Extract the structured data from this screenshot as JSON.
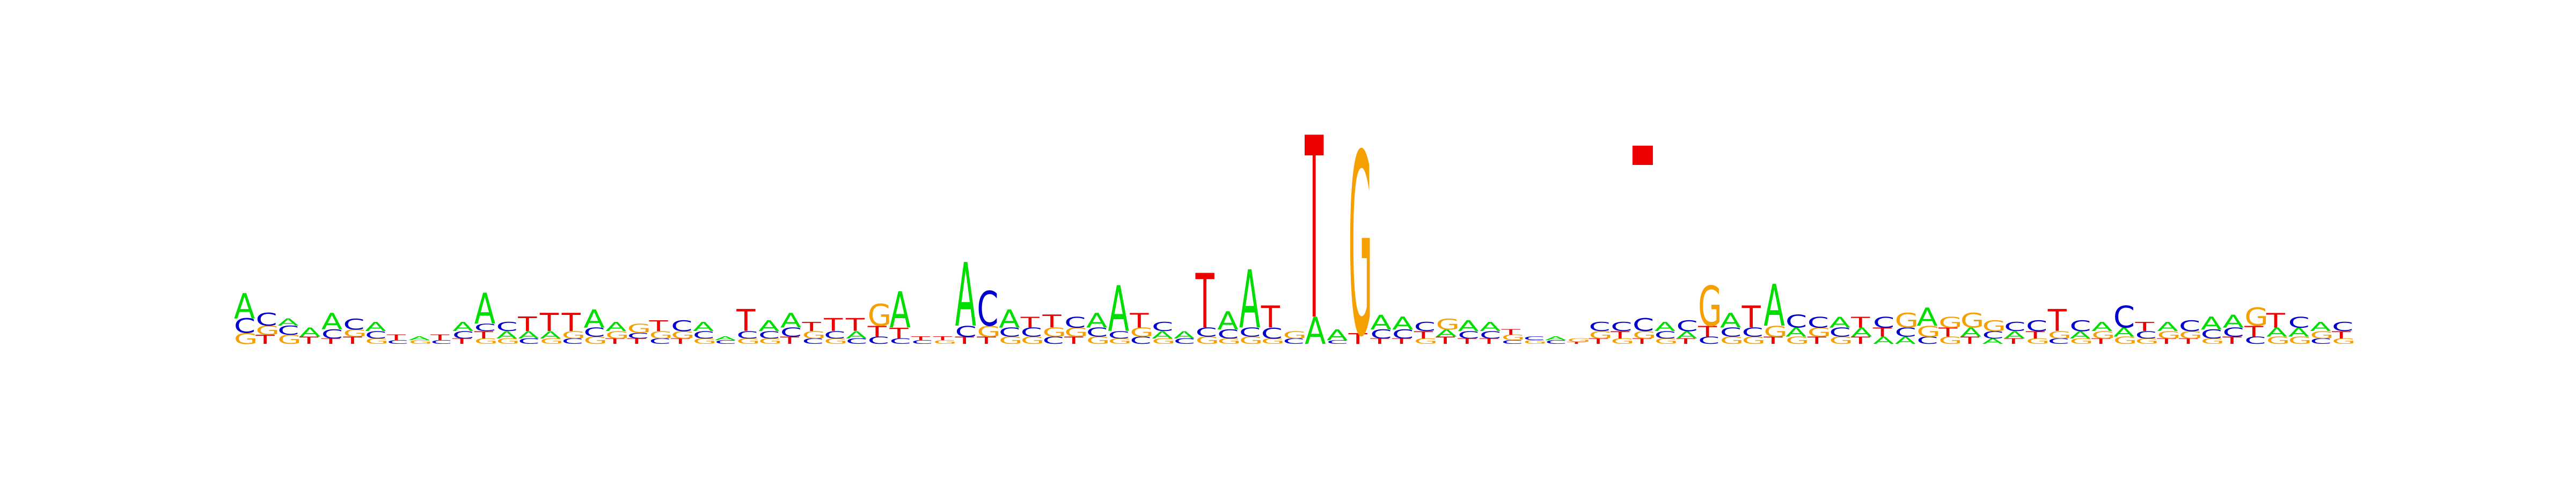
{
  "logo": {
    "type": "sequence-logo",
    "colors": {
      "A": "#00dd00",
      "C": "#0000cc",
      "G": "#f5a000",
      "T": "#ee0000"
    },
    "marker_color": "#ee0000",
    "marker_column": 65,
    "columns": [
      {
        "letters": "GCA",
        "heights": [
          0.06,
          0.08,
          0.14
        ]
      },
      {
        "letters": "TGC",
        "heights": [
          0.05,
          0.05,
          0.07
        ]
      },
      {
        "letters": "GCA",
        "heights": [
          0.05,
          0.05,
          0.04
        ]
      },
      {
        "letters": "TA",
        "heights": [
          0.04,
          0.05
        ]
      },
      {
        "letters": "TCA",
        "heights": [
          0.03,
          0.05,
          0.09
        ]
      },
      {
        "letters": "TGC",
        "heights": [
          0.04,
          0.04,
          0.06
        ]
      },
      {
        "letters": "GCA",
        "heights": [
          0.03,
          0.04,
          0.05
        ]
      },
      {
        "letters": "CT",
        "heights": [
          0.02,
          0.03
        ]
      },
      {
        "letters": "GA",
        "heights": [
          0.02,
          0.02
        ]
      },
      {
        "letters": "CT",
        "heights": [
          0.02,
          0.03
        ]
      },
      {
        "letters": "TCA",
        "heights": [
          0.03,
          0.04,
          0.05
        ]
      },
      {
        "letters": "GTCA",
        "heights": [
          0.03,
          0.04,
          0.04,
          0.17
        ]
      },
      {
        "letters": "GAC",
        "heights": [
          0.03,
          0.04,
          0.05
        ]
      },
      {
        "letters": "CAT",
        "heights": [
          0.03,
          0.04,
          0.08
        ]
      },
      {
        "letters": "GAT",
        "heights": [
          0.03,
          0.04,
          0.1
        ]
      },
      {
        "letters": "CGT",
        "heights": [
          0.03,
          0.04,
          0.1
        ]
      },
      {
        "letters": "GCA",
        "heights": [
          0.04,
          0.05,
          0.1
        ]
      },
      {
        "letters": "TGA",
        "heights": [
          0.03,
          0.04,
          0.05
        ]
      },
      {
        "letters": "TCG",
        "heights": [
          0.03,
          0.03,
          0.05
        ]
      },
      {
        "letters": "CGT",
        "heights": [
          0.03,
          0.04,
          0.06
        ]
      },
      {
        "letters": "TGC",
        "heights": [
          0.03,
          0.04,
          0.06
        ]
      },
      {
        "letters": "GCA",
        "heights": [
          0.03,
          0.04,
          0.05
        ]
      },
      {
        "letters": "CA",
        "heights": [
          0.02,
          0.02
        ]
      },
      {
        "letters": "GCT",
        "heights": [
          0.03,
          0.04,
          0.12
        ]
      },
      {
        "letters": "GCA",
        "heights": [
          0.03,
          0.04,
          0.06
        ]
      },
      {
        "letters": "TCA",
        "heights": [
          0.04,
          0.05,
          0.08
        ]
      },
      {
        "letters": "CGT",
        "heights": [
          0.03,
          0.04,
          0.05
        ]
      },
      {
        "letters": "GCT",
        "heights": [
          0.03,
          0.04,
          0.07
        ]
      },
      {
        "letters": "CAT",
        "heights": [
          0.03,
          0.04,
          0.07
        ]
      },
      {
        "letters": "CTG",
        "heights": [
          0.04,
          0.06,
          0.12
        ]
      },
      {
        "letters": "CTA",
        "heights": [
          0.03,
          0.06,
          0.2
        ]
      },
      {
        "letters": "CT",
        "heights": [
          0.02,
          0.02
        ]
      },
      {
        "letters": "GT",
        "heights": [
          0.02,
          0.02
        ]
      },
      {
        "letters": "TCA",
        "heights": [
          0.04,
          0.06,
          0.35
        ]
      },
      {
        "letters": "TGC",
        "heights": [
          0.04,
          0.06,
          0.19
        ]
      },
      {
        "letters": "GCA",
        "heights": [
          0.04,
          0.05,
          0.1
        ]
      },
      {
        "letters": "GCT",
        "heights": [
          0.04,
          0.05,
          0.06
        ]
      },
      {
        "letters": "CGT",
        "heights": [
          0.04,
          0.05,
          0.07
        ]
      },
      {
        "letters": "TGC",
        "heights": [
          0.04,
          0.05,
          0.06
        ]
      },
      {
        "letters": "GCA",
        "heights": [
          0.04,
          0.05,
          0.08
        ]
      },
      {
        "letters": "GCA",
        "heights": [
          0.03,
          0.04,
          0.25
        ]
      },
      {
        "letters": "CGT",
        "heights": [
          0.04,
          0.05,
          0.08
        ]
      },
      {
        "letters": "GAC",
        "heights": [
          0.03,
          0.04,
          0.05
        ]
      },
      {
        "letters": "CA",
        "heights": [
          0.03,
          0.04
        ]
      },
      {
        "letters": "GCT",
        "heights": [
          0.04,
          0.05,
          0.3
        ]
      },
      {
        "letters": "GCA",
        "heights": [
          0.03,
          0.05,
          0.1
        ]
      },
      {
        "letters": "GCA",
        "heights": [
          0.04,
          0.05,
          0.32
        ]
      },
      {
        "letters": "GCT",
        "heights": [
          0.03,
          0.06,
          0.12
        ]
      },
      {
        "letters": "CG",
        "heights": [
          0.03,
          0.04
        ]
      },
      {
        "letters": "AT",
        "heights": [
          0.15,
          1.0
        ]
      },
      {
        "letters": "CA",
        "heights": [
          0.02,
          0.06
        ]
      },
      {
        "letters": "TG",
        "heights": [
          0.06,
          1.0
        ]
      },
      {
        "letters": "TCA",
        "heights": [
          0.03,
          0.05,
          0.08
        ]
      },
      {
        "letters": "TCA",
        "heights": [
          0.03,
          0.05,
          0.07
        ]
      },
      {
        "letters": "GTC",
        "heights": [
          0.03,
          0.04,
          0.05
        ]
      },
      {
        "letters": "TAG",
        "heights": [
          0.04,
          0.04,
          0.06
        ]
      },
      {
        "letters": "TCA",
        "heights": [
          0.03,
          0.04,
          0.06
        ]
      },
      {
        "letters": "TCA",
        "heights": [
          0.03,
          0.04,
          0.05
        ]
      },
      {
        "letters": "CGT",
        "heights": [
          0.02,
          0.03,
          0.03
        ]
      },
      {
        "letters": "GC",
        "heights": [
          0.02,
          0.02
        ]
      },
      {
        "letters": "CA",
        "heights": [
          0.02,
          0.02
        ]
      },
      {
        "letters": "TG",
        "heights": [
          0.01,
          0.02
        ]
      },
      {
        "letters": "TGC",
        "heights": [
          0.03,
          0.04,
          0.05
        ]
      },
      {
        "letters": "GTC",
        "heights": [
          0.03,
          0.04,
          0.05
        ]
      },
      {
        "letters": "TGC",
        "heights": [
          0.03,
          0.04,
          0.07
        ]
      },
      {
        "letters": "GCA",
        "heights": [
          0.03,
          0.04,
          0.05
        ]
      },
      {
        "letters": "TAC",
        "heights": [
          0.03,
          0.04,
          0.06
        ]
      },
      {
        "letters": "CTG",
        "heights": [
          0.04,
          0.06,
          0.22
        ]
      },
      {
        "letters": "GCA",
        "heights": [
          0.04,
          0.05,
          0.08
        ]
      },
      {
        "letters": "GCT",
        "heights": [
          0.04,
          0.05,
          0.12
        ]
      },
      {
        "letters": "TGA",
        "heights": [
          0.04,
          0.06,
          0.23
        ]
      },
      {
        "letters": "GAC",
        "heights": [
          0.04,
          0.05,
          0.07
        ]
      },
      {
        "letters": "TGC",
        "heights": [
          0.04,
          0.05,
          0.06
        ]
      },
      {
        "letters": "GCA",
        "heights": [
          0.04,
          0.05,
          0.06
        ]
      },
      {
        "letters": "TAT",
        "heights": [
          0.04,
          0.05,
          0.06
        ]
      },
      {
        "letters": "ATC",
        "heights": [
          0.04,
          0.05,
          0.06
        ]
      },
      {
        "letters": "ACG",
        "heights": [
          0.04,
          0.05,
          0.08
        ]
      },
      {
        "letters": "CGA",
        "heights": [
          0.04,
          0.06,
          0.1
        ]
      },
      {
        "letters": "GTG",
        "heights": [
          0.04,
          0.05,
          0.06
        ]
      },
      {
        "letters": "TAG",
        "heights": [
          0.04,
          0.05,
          0.08
        ]
      },
      {
        "letters": "ACG",
        "heights": [
          0.03,
          0.04,
          0.06
        ]
      },
      {
        "letters": "TAC",
        "heights": [
          0.03,
          0.04,
          0.05
        ]
      },
      {
        "letters": "GTC",
        "heights": [
          0.03,
          0.04,
          0.06
        ]
      },
      {
        "letters": "CGT",
        "heights": [
          0.03,
          0.04,
          0.12
        ]
      },
      {
        "letters": "GAC",
        "heights": [
          0.03,
          0.04,
          0.06
        ]
      },
      {
        "letters": "TGA",
        "heights": [
          0.03,
          0.04,
          0.05
        ]
      },
      {
        "letters": "GAC",
        "heights": [
          0.04,
          0.05,
          0.12
        ]
      },
      {
        "letters": "GCT",
        "heights": [
          0.03,
          0.04,
          0.05
        ]
      },
      {
        "letters": "TGA",
        "heights": [
          0.03,
          0.04,
          0.05
        ]
      },
      {
        "letters": "TGC",
        "heights": [
          0.03,
          0.04,
          0.06
        ]
      },
      {
        "letters": "GCA",
        "heights": [
          0.03,
          0.05,
          0.07
        ]
      },
      {
        "letters": "TCA",
        "heights": [
          0.04,
          0.05,
          0.07
        ]
      },
      {
        "letters": "CTG",
        "heights": [
          0.04,
          0.06,
          0.1
        ]
      },
      {
        "letters": "GAT",
        "heights": [
          0.04,
          0.05,
          0.08
        ]
      },
      {
        "letters": "GAC",
        "heights": [
          0.04,
          0.05,
          0.06
        ]
      },
      {
        "letters": "CGA",
        "heights": [
          0.03,
          0.04,
          0.05
        ]
      },
      {
        "letters": "GTC",
        "heights": [
          0.03,
          0.04,
          0.05
        ]
      }
    ]
  }
}
